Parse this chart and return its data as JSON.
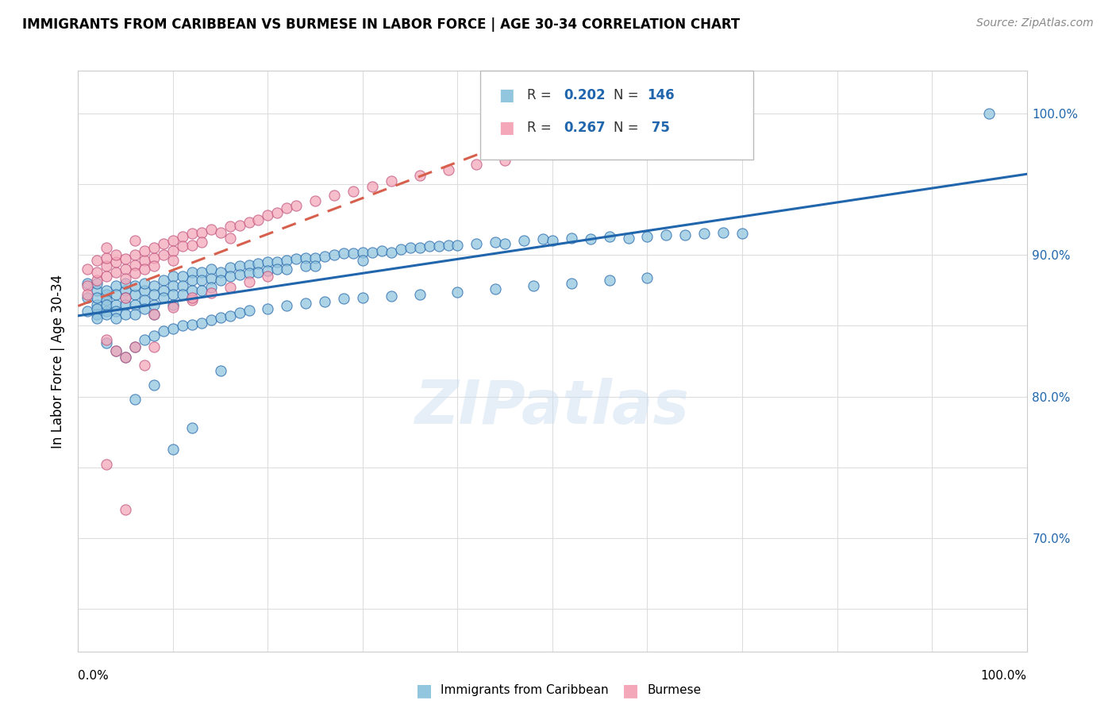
{
  "title": "IMMIGRANTS FROM CARIBBEAN VS BURMESE IN LABOR FORCE | AGE 30-34 CORRELATION CHART",
  "source": "Source: ZipAtlas.com",
  "ylabel": "In Labor Force | Age 30-34",
  "legend_blue_r": "0.202",
  "legend_blue_n": "146",
  "legend_pink_r": "0.267",
  "legend_pink_n": " 75",
  "blue_color": "#92c5de",
  "pink_color": "#f4a7b9",
  "trend_blue": "#2166ac",
  "trend_pink": "#d6604d",
  "watermark": "ZIPatlas",
  "xlim": [
    0.0,
    1.0
  ],
  "ylim": [
    0.62,
    1.03
  ],
  "blue_scatter_x": [
    0.01,
    0.01,
    0.01,
    0.02,
    0.02,
    0.02,
    0.02,
    0.02,
    0.02,
    0.02,
    0.03,
    0.03,
    0.03,
    0.03,
    0.03,
    0.03,
    0.04,
    0.04,
    0.04,
    0.04,
    0.04,
    0.05,
    0.05,
    0.05,
    0.05,
    0.05,
    0.06,
    0.06,
    0.06,
    0.06,
    0.07,
    0.07,
    0.07,
    0.07,
    0.08,
    0.08,
    0.08,
    0.08,
    0.09,
    0.09,
    0.09,
    0.1,
    0.1,
    0.1,
    0.1,
    0.11,
    0.11,
    0.11,
    0.12,
    0.12,
    0.12,
    0.13,
    0.13,
    0.13,
    0.14,
    0.14,
    0.14,
    0.15,
    0.15,
    0.16,
    0.16,
    0.17,
    0.17,
    0.18,
    0.18,
    0.19,
    0.19,
    0.2,
    0.2,
    0.21,
    0.21,
    0.22,
    0.22,
    0.23,
    0.24,
    0.24,
    0.25,
    0.25,
    0.26,
    0.27,
    0.28,
    0.29,
    0.3,
    0.3,
    0.31,
    0.32,
    0.33,
    0.34,
    0.35,
    0.36,
    0.37,
    0.38,
    0.39,
    0.4,
    0.42,
    0.44,
    0.45,
    0.47,
    0.49,
    0.5,
    0.52,
    0.54,
    0.56,
    0.58,
    0.6,
    0.62,
    0.64,
    0.66,
    0.68,
    0.7,
    0.03,
    0.04,
    0.05,
    0.06,
    0.07,
    0.08,
    0.09,
    0.1,
    0.11,
    0.12,
    0.13,
    0.14,
    0.15,
    0.16,
    0.17,
    0.18,
    0.2,
    0.22,
    0.24,
    0.26,
    0.28,
    0.3,
    0.33,
    0.36,
    0.4,
    0.44,
    0.48,
    0.52,
    0.56,
    0.6,
    0.06,
    0.08,
    0.1,
    0.12,
    0.15,
    0.96
  ],
  "blue_scatter_y": [
    0.87,
    0.88,
    0.86,
    0.875,
    0.865,
    0.87,
    0.858,
    0.862,
    0.88,
    0.855,
    0.872,
    0.868,
    0.86,
    0.875,
    0.865,
    0.858,
    0.878,
    0.865,
    0.872,
    0.86,
    0.855,
    0.875,
    0.87,
    0.865,
    0.858,
    0.88,
    0.872,
    0.865,
    0.858,
    0.878,
    0.875,
    0.868,
    0.862,
    0.88,
    0.878,
    0.872,
    0.865,
    0.858,
    0.882,
    0.875,
    0.87,
    0.885,
    0.878,
    0.872,
    0.865,
    0.885,
    0.878,
    0.872,
    0.888,
    0.882,
    0.875,
    0.888,
    0.882,
    0.875,
    0.89,
    0.883,
    0.877,
    0.888,
    0.882,
    0.891,
    0.885,
    0.892,
    0.886,
    0.893,
    0.887,
    0.894,
    0.888,
    0.895,
    0.889,
    0.895,
    0.89,
    0.896,
    0.89,
    0.897,
    0.898,
    0.892,
    0.898,
    0.892,
    0.899,
    0.9,
    0.901,
    0.901,
    0.902,
    0.896,
    0.902,
    0.903,
    0.902,
    0.904,
    0.905,
    0.905,
    0.906,
    0.906,
    0.907,
    0.907,
    0.908,
    0.909,
    0.908,
    0.91,
    0.911,
    0.91,
    0.912,
    0.911,
    0.913,
    0.912,
    0.913,
    0.914,
    0.914,
    0.915,
    0.916,
    0.915,
    0.838,
    0.832,
    0.828,
    0.835,
    0.84,
    0.843,
    0.846,
    0.848,
    0.85,
    0.851,
    0.852,
    0.854,
    0.856,
    0.857,
    0.859,
    0.861,
    0.862,
    0.864,
    0.866,
    0.867,
    0.869,
    0.87,
    0.871,
    0.872,
    0.874,
    0.876,
    0.878,
    0.88,
    0.882,
    0.884,
    0.798,
    0.808,
    0.763,
    0.778,
    0.818,
    1.0
  ],
  "pink_scatter_x": [
    0.01,
    0.01,
    0.01,
    0.02,
    0.02,
    0.02,
    0.03,
    0.03,
    0.03,
    0.03,
    0.04,
    0.04,
    0.04,
    0.05,
    0.05,
    0.05,
    0.05,
    0.06,
    0.06,
    0.06,
    0.06,
    0.07,
    0.07,
    0.07,
    0.08,
    0.08,
    0.08,
    0.09,
    0.09,
    0.1,
    0.1,
    0.1,
    0.11,
    0.11,
    0.12,
    0.12,
    0.13,
    0.13,
    0.14,
    0.15,
    0.16,
    0.16,
    0.17,
    0.18,
    0.19,
    0.2,
    0.21,
    0.22,
    0.23,
    0.25,
    0.27,
    0.29,
    0.31,
    0.33,
    0.36,
    0.39,
    0.42,
    0.45,
    0.5,
    0.03,
    0.04,
    0.05,
    0.06,
    0.07,
    0.08,
    0.1,
    0.12,
    0.14,
    0.16,
    0.18,
    0.2,
    0.03,
    0.05,
    0.08,
    0.12
  ],
  "pink_scatter_y": [
    0.878,
    0.872,
    0.89,
    0.882,
    0.888,
    0.896,
    0.892,
    0.885,
    0.898,
    0.905,
    0.888,
    0.895,
    0.9,
    0.89,
    0.883,
    0.897,
    0.87,
    0.9,
    0.893,
    0.887,
    0.91,
    0.896,
    0.89,
    0.903,
    0.898,
    0.892,
    0.905,
    0.908,
    0.9,
    0.91,
    0.903,
    0.896,
    0.913,
    0.906,
    0.915,
    0.907,
    0.916,
    0.909,
    0.918,
    0.916,
    0.92,
    0.912,
    0.921,
    0.923,
    0.925,
    0.928,
    0.93,
    0.933,
    0.935,
    0.938,
    0.942,
    0.945,
    0.948,
    0.952,
    0.956,
    0.96,
    0.964,
    0.967,
    0.972,
    0.84,
    0.832,
    0.828,
    0.835,
    0.822,
    0.858,
    0.863,
    0.868,
    0.873,
    0.877,
    0.881,
    0.885,
    0.752,
    0.72,
    0.835,
    0.87
  ],
  "right_ytick_labels": [
    "70.0%",
    "80.0%",
    "90.0%",
    "100.0%"
  ],
  "right_ytick_positions": [
    0.7,
    0.8,
    0.9,
    1.0
  ]
}
